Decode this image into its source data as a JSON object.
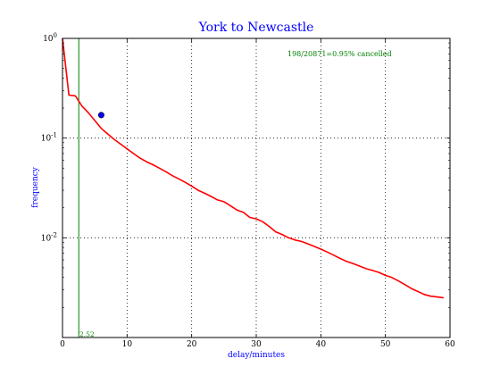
{
  "chart_data": {
    "type": "line",
    "title": "York to Newcastle",
    "xlabel": "delay/minutes",
    "ylabel": "frequency",
    "xlim": [
      0,
      60
    ],
    "ylim": [
      0.001,
      1
    ],
    "yscale": "log",
    "grid": true,
    "x_ticks": [
      "0",
      "10",
      "20",
      "30",
      "40",
      "50",
      "60"
    ],
    "y_ticks": [
      {
        "base": "10",
        "exp": "0",
        "value": 1
      },
      {
        "base": "10",
        "exp": "-1",
        "value": 0.1
      },
      {
        "base": "10",
        "exp": "-2",
        "value": 0.01
      }
    ],
    "annotation": "198/20871=0.95% cancelled",
    "mean_line": {
      "x": 2.52,
      "label": "2.52"
    },
    "marker": {
      "x": 6,
      "y": 0.17
    },
    "series": [
      {
        "color": "#ff0000",
        "x": [
          0,
          1,
          2,
          3,
          4,
          5,
          6,
          7,
          8,
          9,
          10,
          11,
          12,
          13,
          14,
          15,
          16,
          17,
          18,
          19,
          20,
          21,
          22,
          23,
          24,
          25,
          26,
          27,
          28,
          29,
          30,
          31,
          32,
          33,
          34,
          35,
          36,
          37,
          38,
          39,
          40,
          41,
          42,
          43,
          44,
          45,
          46,
          47,
          48,
          49,
          50,
          51,
          52,
          53,
          54,
          55,
          56,
          57,
          58,
          59
        ],
        "y": [
          1.0,
          0.27,
          0.265,
          0.21,
          0.18,
          0.15,
          0.125,
          0.11,
          0.097,
          0.087,
          0.078,
          0.07,
          0.063,
          0.058,
          0.054,
          0.05,
          0.046,
          0.042,
          0.039,
          0.036,
          0.033,
          0.03,
          0.028,
          0.026,
          0.024,
          0.023,
          0.021,
          0.019,
          0.018,
          0.016,
          0.0155,
          0.0145,
          0.013,
          0.0115,
          0.0108,
          0.01,
          0.0095,
          0.0092,
          0.0087,
          0.0082,
          0.0077,
          0.0072,
          0.0067,
          0.0062,
          0.0058,
          0.0055,
          0.0052,
          0.0049,
          0.0047,
          0.0045,
          0.0042,
          0.004,
          0.0037,
          0.0034,
          0.0031,
          0.0029,
          0.0027,
          0.0026,
          0.00255,
          0.0025
        ]
      }
    ]
  }
}
